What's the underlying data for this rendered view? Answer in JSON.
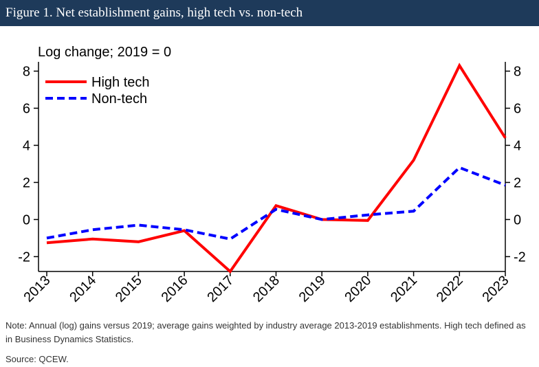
{
  "header": {
    "title": "Figure 1. Net establishment gains, high tech vs. non-tech"
  },
  "chart_data": {
    "type": "line",
    "title": "",
    "ylabel": "Log change; 2019 = 0",
    "xlabel": "",
    "x": [
      "2013",
      "2014",
      "2015",
      "2016",
      "2017",
      "2018",
      "2019",
      "2020",
      "2021",
      "2022",
      "2023"
    ],
    "ylim": [
      -2.8,
      8.5
    ],
    "yticks": [
      "8",
      "6",
      "4",
      "2",
      "0",
      "-2"
    ],
    "grid": false,
    "legend_position": "top-left",
    "series": [
      {
        "name": "High tech",
        "color": "#ff0000",
        "style": "solid",
        "values": [
          -1.25,
          -1.05,
          -1.2,
          -0.6,
          -2.8,
          0.75,
          0.0,
          -0.05,
          3.2,
          8.3,
          4.4
        ]
      },
      {
        "name": "Non-tech",
        "color": "#0000ff",
        "style": "dashed",
        "values": [
          -1.0,
          -0.55,
          -0.3,
          -0.55,
          -1.05,
          0.55,
          0.0,
          0.25,
          0.45,
          2.8,
          1.85
        ]
      }
    ]
  },
  "footer": {
    "note": "Note: Annual (log) gains versus 2019; average gains weighted by industry average 2013-2019 establishments. High tech defined as in Business Dynamics Statistics.",
    "source": "Source: QCEW."
  }
}
